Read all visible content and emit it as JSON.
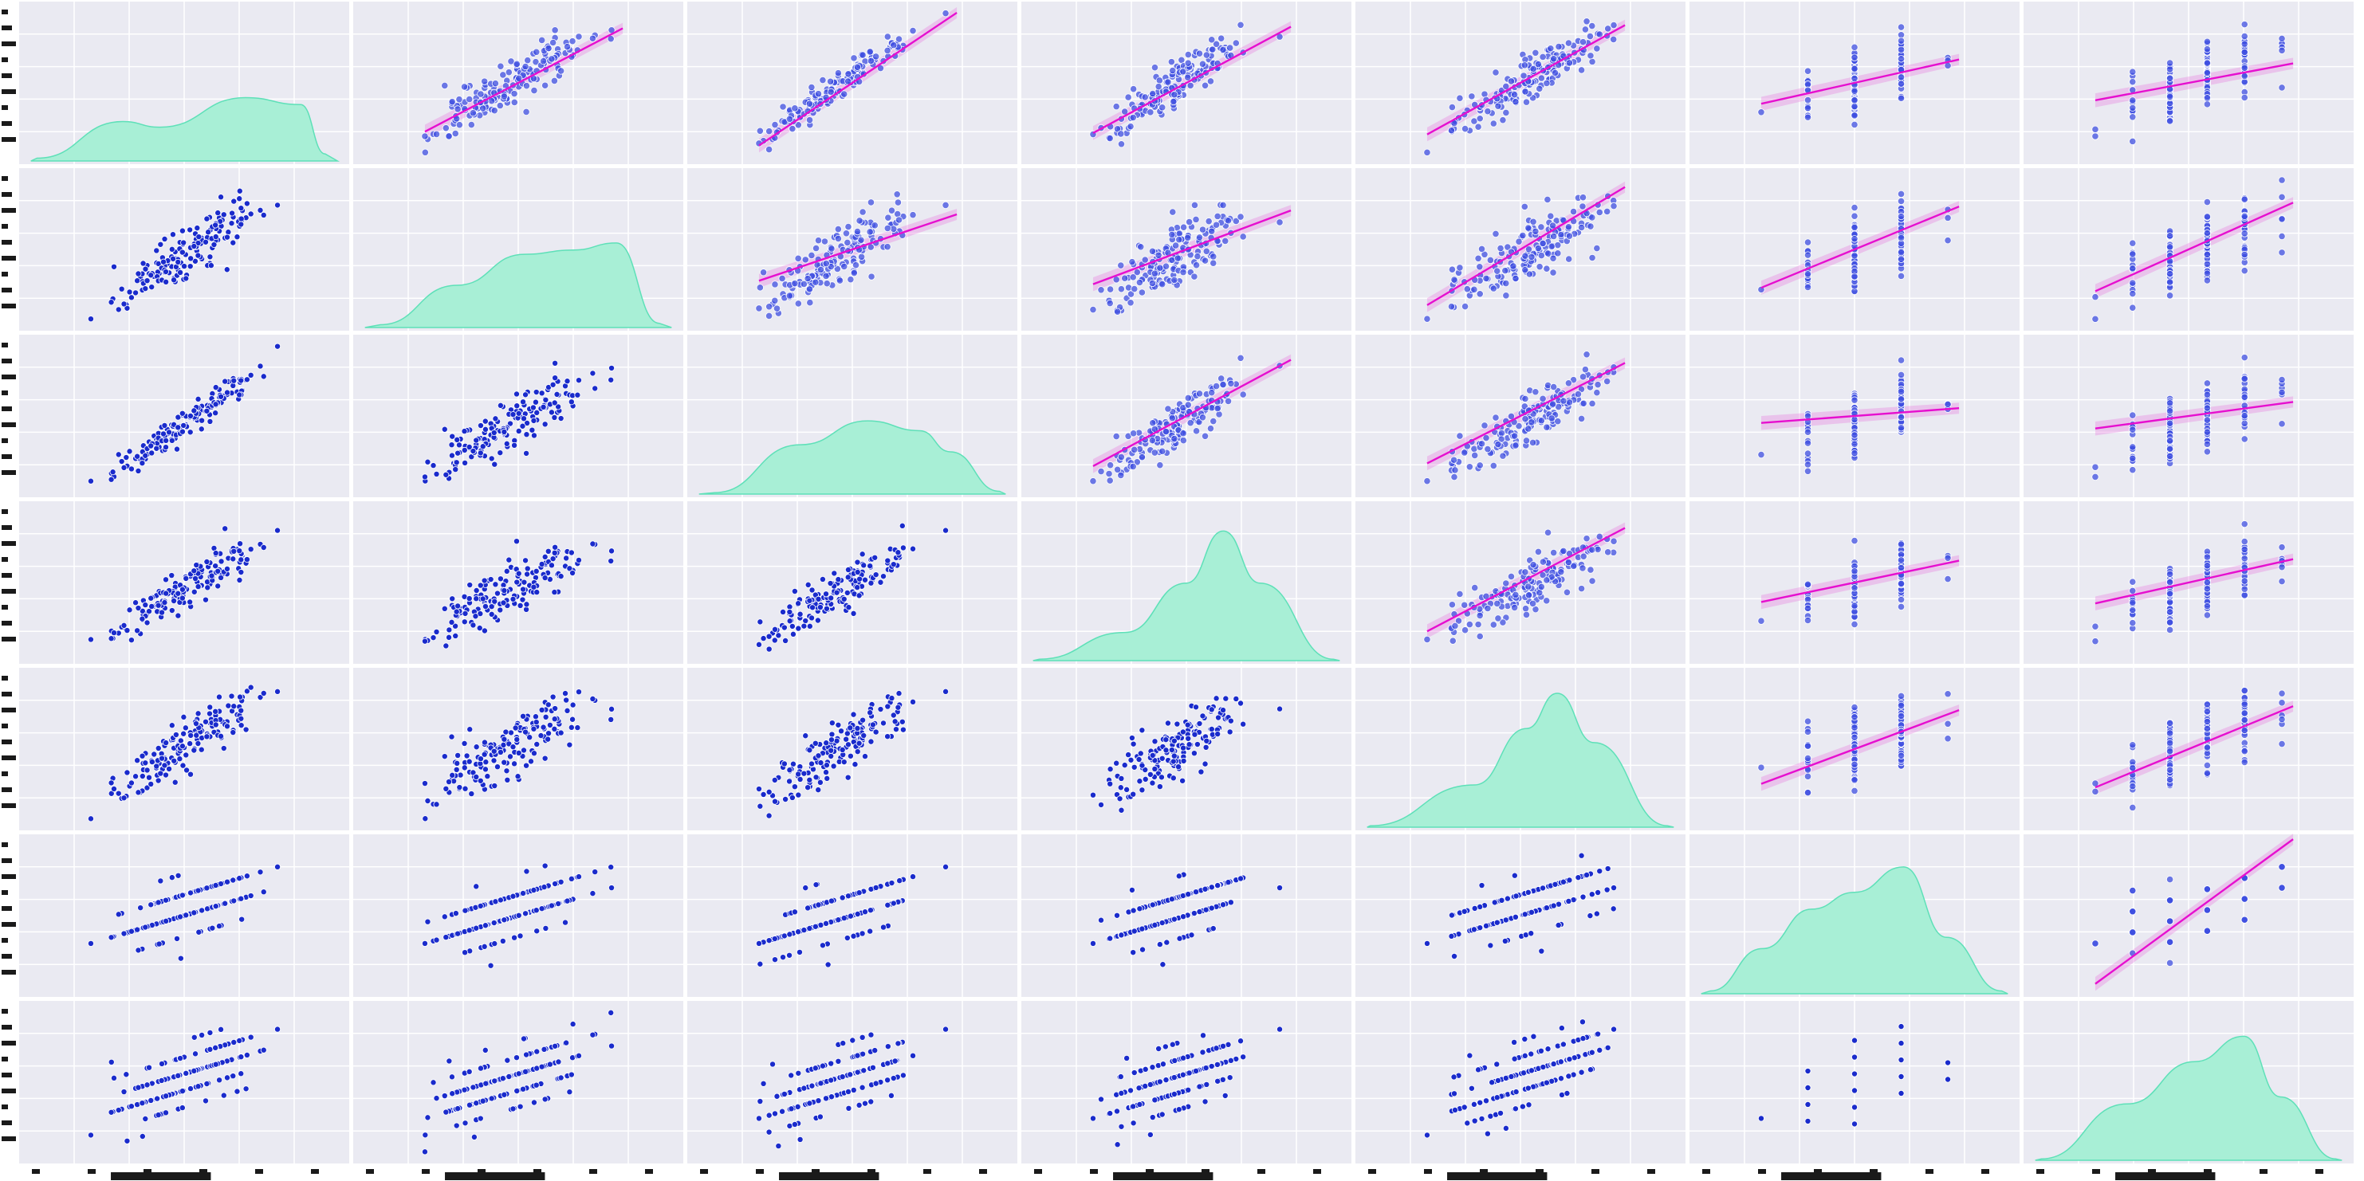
{
  "colors": {
    "scatter": "#1a2bcc",
    "regression_line": "#e60fcf",
    "regression_band": "#e77be0",
    "kde": "#a8efd6",
    "panel_background": "#eaeaf2",
    "grid": "#ffffff"
  },
  "chart_data": {
    "type": "scatter",
    "layout": "pairplot",
    "grid": true,
    "variables": [
      "v1",
      "v2",
      "v3",
      "v4",
      "v5",
      "v6",
      "v7"
    ],
    "lower_triangle": "scatter",
    "diagonal": "kde",
    "upper_triangle": "regression",
    "discrete_variables": [
      "v6",
      "v7"
    ],
    "discrete_levels": {
      "v6": [
        1,
        2,
        3,
        4,
        5
      ],
      "v7": [
        1,
        2,
        3,
        4,
        5,
        6,
        7,
        8
      ]
    },
    "n_points": 160,
    "correlation_matrix": [
      [
        1.0,
        0.72,
        0.92,
        0.7,
        0.76,
        0.3,
        0.28
      ],
      [
        0.72,
        1.0,
        0.62,
        0.66,
        0.88,
        0.45,
        0.72
      ],
      [
        0.92,
        0.62,
        1.0,
        0.68,
        0.66,
        0.12,
        0.18
      ],
      [
        0.7,
        0.66,
        0.68,
        1.0,
        0.7,
        0.32,
        0.3
      ],
      [
        0.76,
        0.88,
        0.66,
        0.7,
        1.0,
        0.5,
        0.6
      ],
      [
        0.3,
        0.45,
        0.12,
        0.32,
        0.5,
        1.0,
        0.97
      ],
      [
        0.28,
        0.72,
        0.18,
        0.3,
        0.6,
        0.97,
        1.0
      ]
    ],
    "regression_slopes_normalized": [
      [
        null,
        0.7,
        0.9,
        0.72,
        0.74,
        0.3,
        0.25
      ],
      [
        null,
        null,
        0.45,
        0.5,
        0.8,
        0.55,
        0.6
      ],
      [
        null,
        null,
        null,
        0.72,
        0.68,
        0.1,
        0.18
      ],
      [
        null,
        null,
        null,
        null,
        0.7,
        0.28,
        0.3
      ],
      [
        null,
        null,
        null,
        null,
        null,
        0.5,
        0.55
      ],
      [
        null,
        null,
        null,
        null,
        null,
        null,
        0.98
      ],
      [
        null,
        null,
        null,
        null,
        null,
        null,
        null
      ]
    ],
    "kde_shapes": [
      [
        [
          0.02,
          0.02
        ],
        [
          0.3,
          0.28
        ],
        [
          0.42,
          0.24
        ],
        [
          0.7,
          0.45
        ],
        [
          0.88,
          0.4
        ],
        [
          0.96,
          0.05
        ]
      ],
      [
        [
          0.05,
          0.02
        ],
        [
          0.3,
          0.3
        ],
        [
          0.52,
          0.52
        ],
        [
          0.68,
          0.55
        ],
        [
          0.82,
          0.6
        ],
        [
          0.96,
          0.03
        ]
      ],
      [
        [
          0.05,
          0.01
        ],
        [
          0.33,
          0.35
        ],
        [
          0.55,
          0.52
        ],
        [
          0.72,
          0.45
        ],
        [
          0.82,
          0.3
        ],
        [
          0.98,
          0.02
        ]
      ],
      [
        [
          0.02,
          0.01
        ],
        [
          0.3,
          0.2
        ],
        [
          0.5,
          0.55
        ],
        [
          0.62,
          0.92
        ],
        [
          0.74,
          0.55
        ],
        [
          0.98,
          0.01
        ]
      ],
      [
        [
          0.01,
          0.01
        ],
        [
          0.35,
          0.3
        ],
        [
          0.52,
          0.7
        ],
        [
          0.62,
          0.95
        ],
        [
          0.74,
          0.6
        ],
        [
          0.98,
          0.01
        ]
      ],
      [
        [
          0.03,
          0.02
        ],
        [
          0.2,
          0.32
        ],
        [
          0.36,
          0.6
        ],
        [
          0.5,
          0.72
        ],
        [
          0.66,
          0.9
        ],
        [
          0.8,
          0.4
        ],
        [
          0.98,
          0.02
        ]
      ],
      [
        [
          0.02,
          0.01
        ],
        [
          0.3,
          0.4
        ],
        [
          0.52,
          0.7
        ],
        [
          0.68,
          0.88
        ],
        [
          0.8,
          0.45
        ],
        [
          0.98,
          0.01
        ]
      ]
    ]
  }
}
